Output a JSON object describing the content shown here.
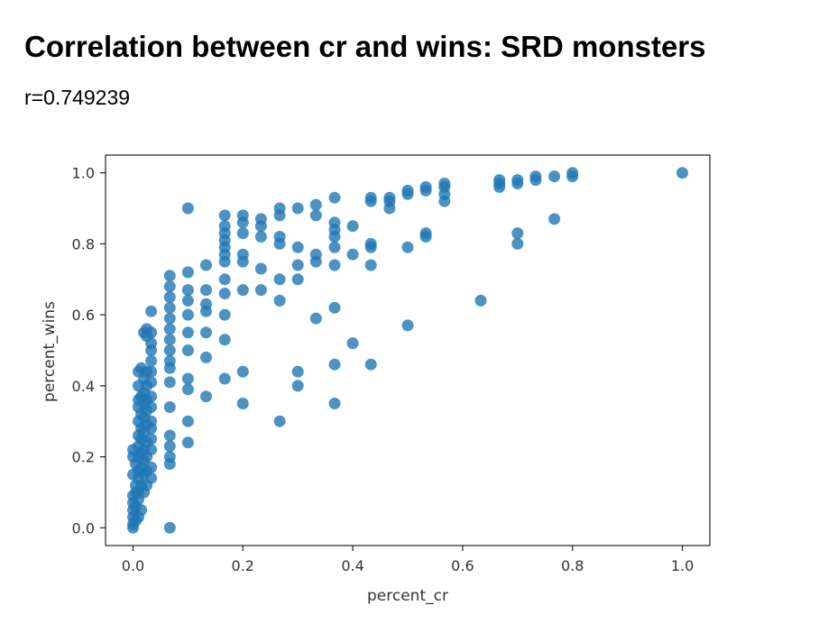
{
  "page": {
    "title": "Correlation between cr and wins: SRD monsters",
    "subtitle": "r=0.749239"
  },
  "chart_data": {
    "type": "scatter",
    "title": "",
    "xlabel": "percent_cr",
    "ylabel": "percent_wins",
    "xlim": [
      -0.05,
      1.05
    ],
    "ylim": [
      -0.05,
      1.05
    ],
    "xticks": [
      0.0,
      0.2,
      0.4,
      0.6,
      0.8,
      1.0
    ],
    "yticks": [
      0.0,
      0.2,
      0.4,
      0.6,
      0.8,
      1.0
    ],
    "xtick_labels": [
      "0.0",
      "0.2",
      "0.4",
      "0.6",
      "0.8",
      "1.0"
    ],
    "ytick_labels": [
      "0.0",
      "0.2",
      "0.4",
      "0.6",
      "0.8",
      "1.0"
    ],
    "grid": false,
    "marker_color": "#1f77b4",
    "points": [
      [
        0.0,
        0.0
      ],
      [
        0.0,
        0.01
      ],
      [
        0.0,
        0.03
      ],
      [
        0.0,
        0.05
      ],
      [
        0.0,
        0.07
      ],
      [
        0.0,
        0.09
      ],
      [
        0.0,
        0.15
      ],
      [
        0.0,
        0.2
      ],
      [
        0.0,
        0.22
      ],
      [
        0.005,
        0.02
      ],
      [
        0.005,
        0.06
      ],
      [
        0.005,
        0.1
      ],
      [
        0.005,
        0.12
      ],
      [
        0.005,
        0.18
      ],
      [
        0.01,
        0.03
      ],
      [
        0.01,
        0.08
      ],
      [
        0.01,
        0.1
      ],
      [
        0.01,
        0.14
      ],
      [
        0.01,
        0.16
      ],
      [
        0.01,
        0.2
      ],
      [
        0.01,
        0.23
      ],
      [
        0.01,
        0.26
      ],
      [
        0.01,
        0.3
      ],
      [
        0.01,
        0.34
      ],
      [
        0.01,
        0.36
      ],
      [
        0.01,
        0.4
      ],
      [
        0.01,
        0.44
      ],
      [
        0.015,
        0.05
      ],
      [
        0.015,
        0.12
      ],
      [
        0.015,
        0.17
      ],
      [
        0.015,
        0.21
      ],
      [
        0.015,
        0.25
      ],
      [
        0.015,
        0.28
      ],
      [
        0.015,
        0.32
      ],
      [
        0.015,
        0.37
      ],
      [
        0.015,
        0.45
      ],
      [
        0.02,
        0.1
      ],
      [
        0.02,
        0.15
      ],
      [
        0.02,
        0.19
      ],
      [
        0.02,
        0.22
      ],
      [
        0.02,
        0.27
      ],
      [
        0.02,
        0.31
      ],
      [
        0.02,
        0.35
      ],
      [
        0.02,
        0.38
      ],
      [
        0.02,
        0.42
      ],
      [
        0.02,
        0.55
      ],
      [
        0.025,
        0.12
      ],
      [
        0.025,
        0.16
      ],
      [
        0.025,
        0.2
      ],
      [
        0.025,
        0.24
      ],
      [
        0.025,
        0.29
      ],
      [
        0.025,
        0.33
      ],
      [
        0.025,
        0.36
      ],
      [
        0.025,
        0.4
      ],
      [
        0.025,
        0.44
      ],
      [
        0.025,
        0.54
      ],
      [
        0.025,
        0.56
      ],
      [
        0.033,
        0.14
      ],
      [
        0.033,
        0.17
      ],
      [
        0.033,
        0.22
      ],
      [
        0.033,
        0.25
      ],
      [
        0.033,
        0.28
      ],
      [
        0.033,
        0.3
      ],
      [
        0.033,
        0.34
      ],
      [
        0.033,
        0.37
      ],
      [
        0.033,
        0.41
      ],
      [
        0.033,
        0.44
      ],
      [
        0.033,
        0.47
      ],
      [
        0.033,
        0.5
      ],
      [
        0.033,
        0.52
      ],
      [
        0.033,
        0.55
      ],
      [
        0.033,
        0.61
      ],
      [
        0.067,
        0.0
      ],
      [
        0.067,
        0.18
      ],
      [
        0.067,
        0.2
      ],
      [
        0.067,
        0.23
      ],
      [
        0.067,
        0.26
      ],
      [
        0.067,
        0.34
      ],
      [
        0.067,
        0.41
      ],
      [
        0.067,
        0.45
      ],
      [
        0.067,
        0.47
      ],
      [
        0.067,
        0.5
      ],
      [
        0.067,
        0.53
      ],
      [
        0.067,
        0.56
      ],
      [
        0.067,
        0.59
      ],
      [
        0.067,
        0.62
      ],
      [
        0.067,
        0.65
      ],
      [
        0.067,
        0.68
      ],
      [
        0.067,
        0.71
      ],
      [
        0.1,
        0.24
      ],
      [
        0.1,
        0.3
      ],
      [
        0.1,
        0.39
      ],
      [
        0.1,
        0.42
      ],
      [
        0.1,
        0.5
      ],
      [
        0.1,
        0.55
      ],
      [
        0.1,
        0.6
      ],
      [
        0.1,
        0.64
      ],
      [
        0.1,
        0.67
      ],
      [
        0.1,
        0.72
      ],
      [
        0.1,
        0.9
      ],
      [
        0.133,
        0.37
      ],
      [
        0.133,
        0.48
      ],
      [
        0.133,
        0.55
      ],
      [
        0.133,
        0.61
      ],
      [
        0.133,
        0.63
      ],
      [
        0.133,
        0.67
      ],
      [
        0.133,
        0.74
      ],
      [
        0.167,
        0.42
      ],
      [
        0.167,
        0.53
      ],
      [
        0.167,
        0.6
      ],
      [
        0.167,
        0.66
      ],
      [
        0.167,
        0.7
      ],
      [
        0.167,
        0.75
      ],
      [
        0.167,
        0.77
      ],
      [
        0.167,
        0.79
      ],
      [
        0.167,
        0.81
      ],
      [
        0.167,
        0.83
      ],
      [
        0.167,
        0.85
      ],
      [
        0.167,
        0.88
      ],
      [
        0.2,
        0.35
      ],
      [
        0.2,
        0.44
      ],
      [
        0.2,
        0.67
      ],
      [
        0.2,
        0.75
      ],
      [
        0.2,
        0.77
      ],
      [
        0.2,
        0.83
      ],
      [
        0.2,
        0.86
      ],
      [
        0.2,
        0.88
      ],
      [
        0.233,
        0.67
      ],
      [
        0.233,
        0.73
      ],
      [
        0.233,
        0.82
      ],
      [
        0.233,
        0.85
      ],
      [
        0.233,
        0.87
      ],
      [
        0.267,
        0.3
      ],
      [
        0.267,
        0.64
      ],
      [
        0.267,
        0.7
      ],
      [
        0.267,
        0.8
      ],
      [
        0.267,
        0.82
      ],
      [
        0.267,
        0.88
      ],
      [
        0.267,
        0.9
      ],
      [
        0.3,
        0.4
      ],
      [
        0.3,
        0.44
      ],
      [
        0.3,
        0.7
      ],
      [
        0.3,
        0.74
      ],
      [
        0.3,
        0.79
      ],
      [
        0.3,
        0.9
      ],
      [
        0.333,
        0.59
      ],
      [
        0.333,
        0.75
      ],
      [
        0.333,
        0.77
      ],
      [
        0.333,
        0.88
      ],
      [
        0.333,
        0.91
      ],
      [
        0.367,
        0.35
      ],
      [
        0.367,
        0.46
      ],
      [
        0.367,
        0.62
      ],
      [
        0.367,
        0.74
      ],
      [
        0.367,
        0.79
      ],
      [
        0.367,
        0.82
      ],
      [
        0.367,
        0.84
      ],
      [
        0.367,
        0.86
      ],
      [
        0.367,
        0.93
      ],
      [
        0.4,
        0.52
      ],
      [
        0.4,
        0.77
      ],
      [
        0.4,
        0.85
      ],
      [
        0.433,
        0.46
      ],
      [
        0.433,
        0.74
      ],
      [
        0.433,
        0.79
      ],
      [
        0.433,
        0.8
      ],
      [
        0.433,
        0.92
      ],
      [
        0.433,
        0.93
      ],
      [
        0.467,
        0.9
      ],
      [
        0.467,
        0.92
      ],
      [
        0.467,
        0.93
      ],
      [
        0.5,
        0.57
      ],
      [
        0.5,
        0.79
      ],
      [
        0.5,
        0.94
      ],
      [
        0.5,
        0.95
      ],
      [
        0.533,
        0.82
      ],
      [
        0.533,
        0.83
      ],
      [
        0.533,
        0.95
      ],
      [
        0.533,
        0.96
      ],
      [
        0.567,
        0.92
      ],
      [
        0.567,
        0.94
      ],
      [
        0.567,
        0.96
      ],
      [
        0.567,
        0.97
      ],
      [
        0.633,
        0.64
      ],
      [
        0.667,
        0.96
      ],
      [
        0.667,
        0.97
      ],
      [
        0.667,
        0.98
      ],
      [
        0.7,
        0.8
      ],
      [
        0.7,
        0.83
      ],
      [
        0.7,
        0.97
      ],
      [
        0.7,
        0.98
      ],
      [
        0.733,
        0.98
      ],
      [
        0.733,
        0.99
      ],
      [
        0.767,
        0.87
      ],
      [
        0.767,
        0.99
      ],
      [
        0.8,
        0.99
      ],
      [
        0.8,
        1.0
      ],
      [
        1.0,
        1.0
      ]
    ]
  }
}
